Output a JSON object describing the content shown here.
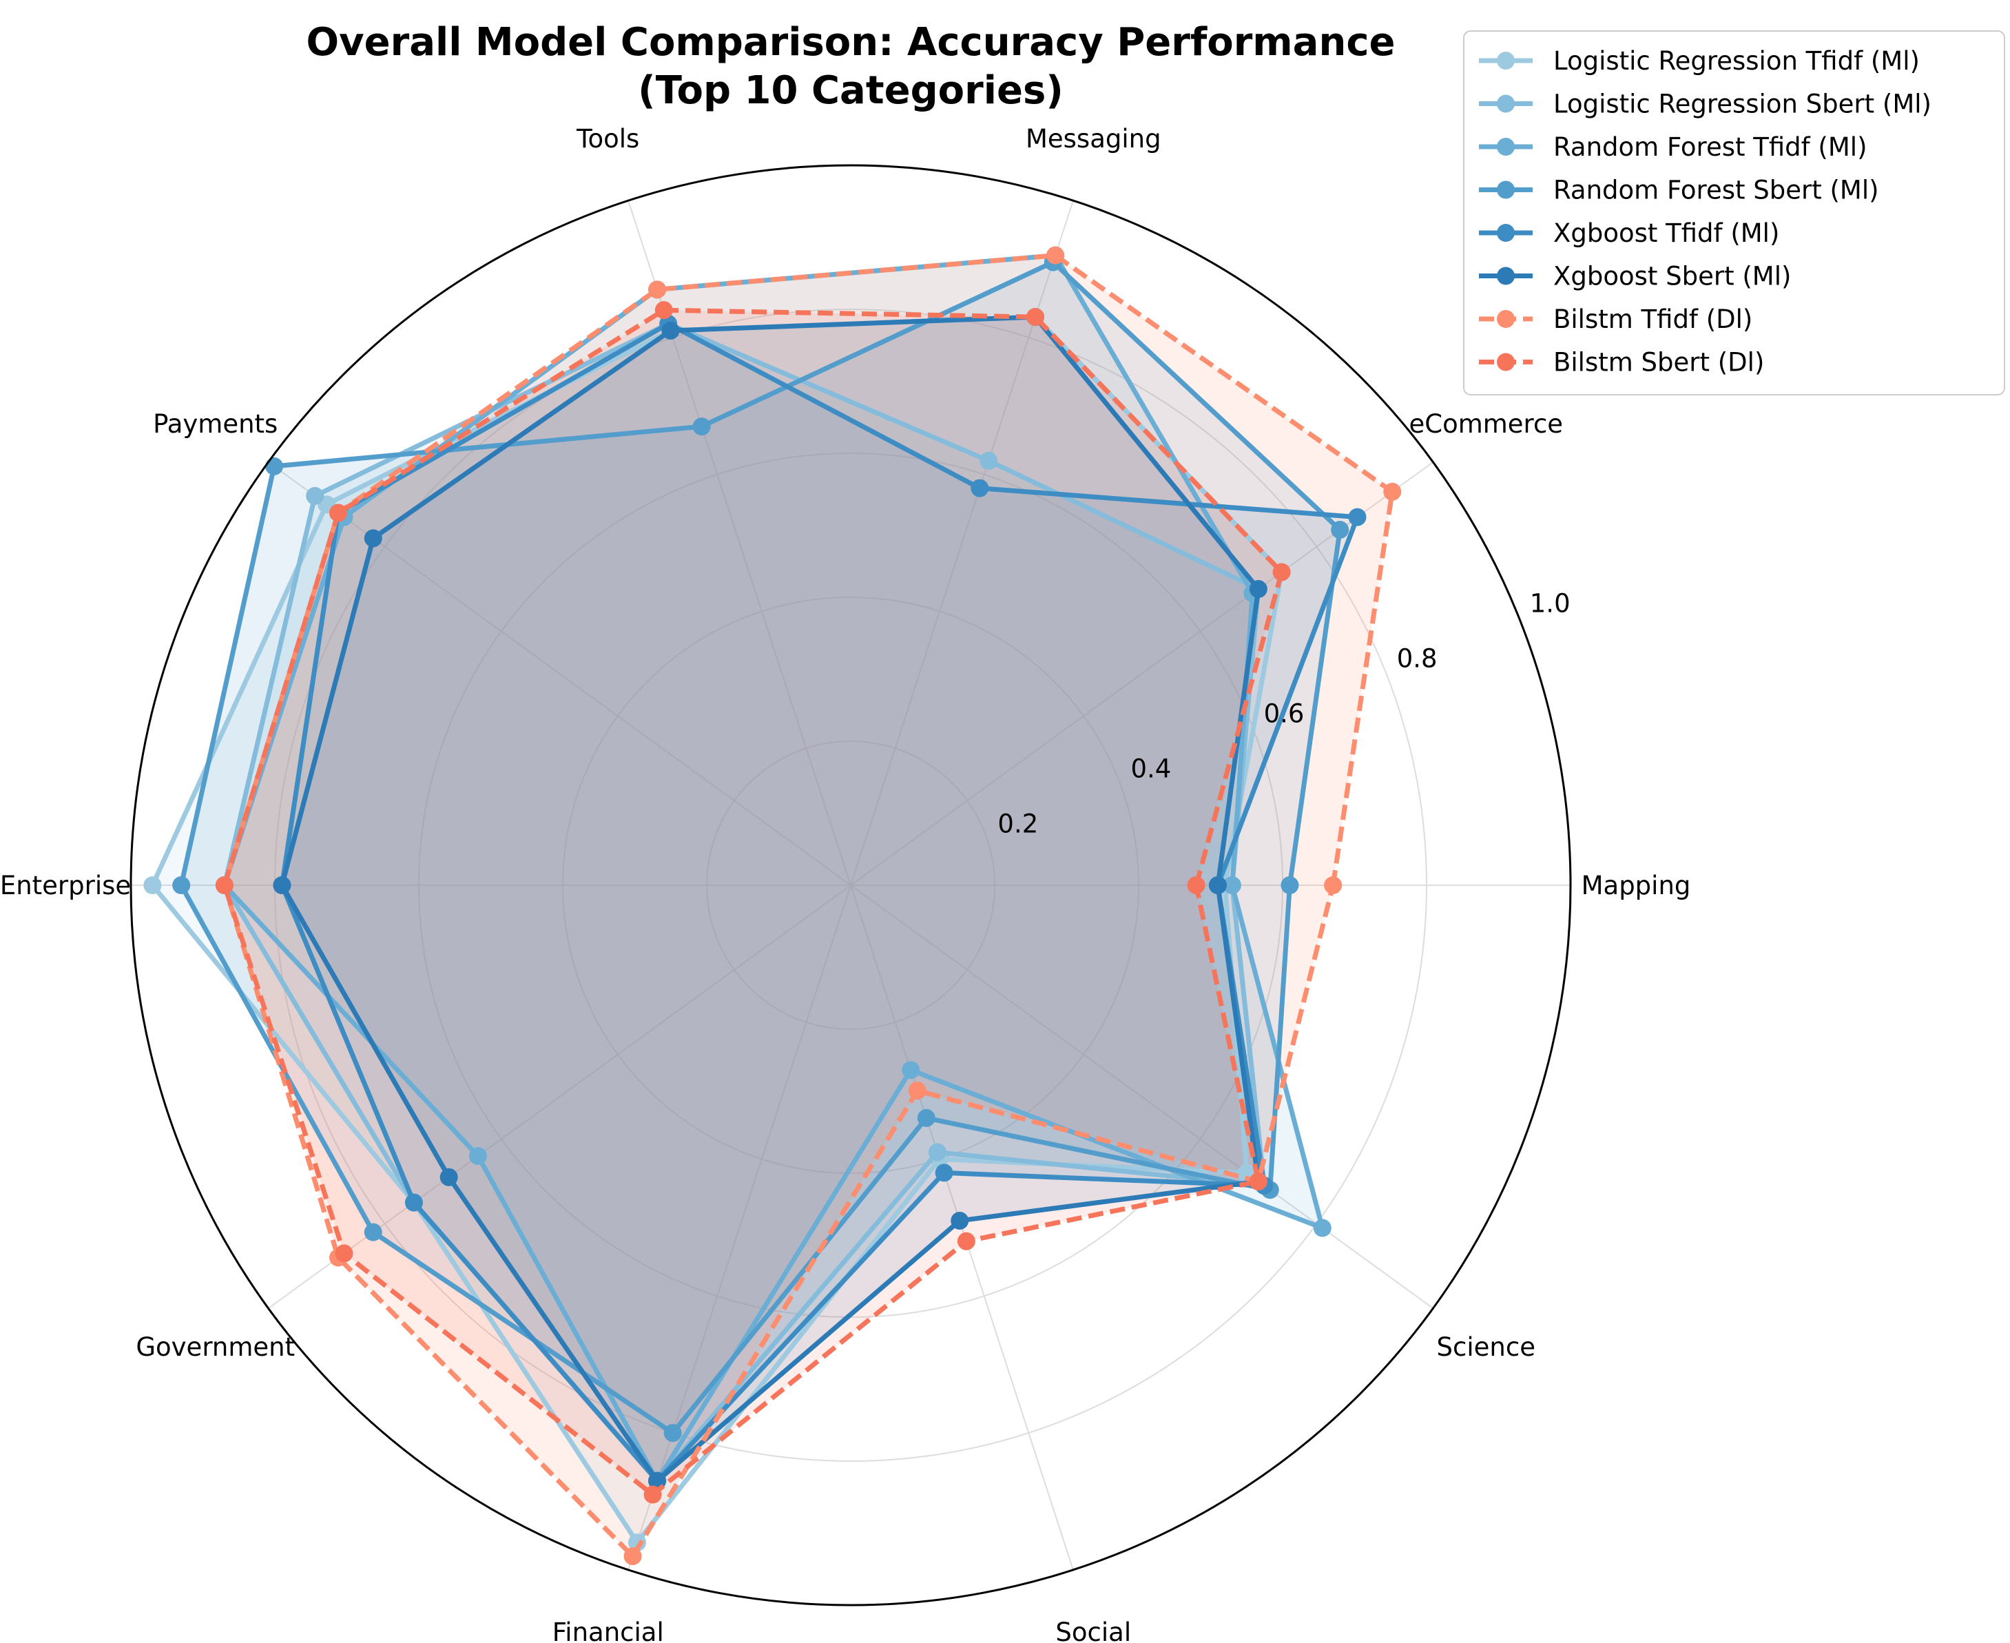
{
  "chart_data": {
    "type": "radar",
    "title_lines": [
      "Overall Model Comparison: Accuracy Performance",
      "(Top 10 Categories)"
    ],
    "categories": [
      "Mapping",
      "eCommerce",
      "Messaging",
      "Tools",
      "Payments",
      "Enterprise",
      "Government",
      "Financial",
      "Social",
      "Science"
    ],
    "r_ticks": [
      0.2,
      0.4,
      0.6,
      0.8,
      1.0
    ],
    "r_tick_labels": [
      "0.2",
      "0.4",
      "0.6",
      "0.8",
      "1.0"
    ],
    "rlim": [
      0,
      1.0
    ],
    "grid": true,
    "legend_position": "upper right",
    "series": [
      {
        "name": "Logistic Regression Tfidf (Ml)",
        "color": "#9ecae1",
        "dash": false,
        "values": [
          0.52,
          0.74,
          0.83,
          0.81,
          0.9,
          0.97,
          0.75,
          0.96,
          0.4,
          0.68
        ]
      },
      {
        "name": "Logistic Regression Sbert (Ml)",
        "color": "#85bcdc",
        "dash": false,
        "values": [
          0.53,
          0.7,
          0.62,
          0.82,
          0.92,
          0.87,
          0.75,
          0.87,
          0.39,
          0.71
        ]
      },
      {
        "name": "Random Forest Tfidf (Ml)",
        "color": "#6aaed6",
        "dash": false,
        "values": [
          0.53,
          0.69,
          0.92,
          0.87,
          0.87,
          0.87,
          0.64,
          0.87,
          0.27,
          0.81
        ]
      },
      {
        "name": "Random Forest Sbert (Ml)",
        "color": "#529dcc",
        "dash": false,
        "values": [
          0.61,
          0.84,
          0.91,
          0.67,
          0.99,
          0.93,
          0.82,
          0.8,
          0.34,
          0.72
        ]
      },
      {
        "name": "Xgboost Tfidf (Ml)",
        "color": "#3d8dc4",
        "dash": false,
        "values": [
          0.51,
          0.87,
          0.58,
          0.82,
          0.88,
          0.79,
          0.75,
          0.87,
          0.42,
          0.71
        ]
      },
      {
        "name": "Xgboost Sbert (Ml)",
        "color": "#2c7bb6",
        "dash": false,
        "values": [
          0.51,
          0.7,
          0.83,
          0.81,
          0.82,
          0.79,
          0.69,
          0.87,
          0.49,
          0.7
        ]
      },
      {
        "name": "Bilstm Tfidf (Dl)",
        "color": "#fc8d6e",
        "dash": true,
        "values": [
          0.67,
          0.93,
          0.92,
          0.87,
          0.88,
          0.87,
          0.88,
          0.98,
          0.3,
          0.7
        ]
      },
      {
        "name": "Bilstm Sbert (Dl)",
        "color": "#f6755a",
        "dash": true,
        "values": [
          0.48,
          0.74,
          0.83,
          0.84,
          0.88,
          0.87,
          0.87,
          0.89,
          0.52,
          0.7
        ]
      }
    ]
  }
}
